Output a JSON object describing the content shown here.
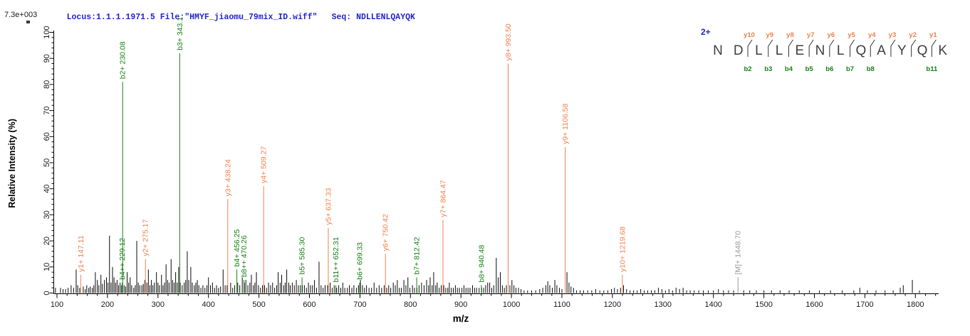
{
  "header": {
    "scale_label": "7.3e+003",
    "locus_file": "Locus:1.1.1.1971.5 File:\"HMYF_jiaomu_79mix_ID.wiff\"",
    "seq_label": "Seq: NDLLENLQAYQK"
  },
  "colors": {
    "y_ion": "#f0814e",
    "b_ion": "#178017",
    "precursor": "#999999",
    "noise": "#0a0a0a",
    "header": "#2525c8",
    "axis": "#000000",
    "tick_label": "#1a1a1a",
    "residue": "#3f3f3f",
    "fragment_mark": "#333333"
  },
  "sequence_panel": {
    "charge_label": "2+",
    "residues": [
      "N",
      "D",
      "L",
      "L",
      "E",
      "N",
      "L",
      "Q",
      "A",
      "Y",
      "Q",
      "K"
    ],
    "y_ion_labels": [
      {
        "label": "y10",
        "gap": 2
      },
      {
        "label": "y9",
        "gap": 3
      },
      {
        "label": "y8",
        "gap": 4
      },
      {
        "label": "y7",
        "gap": 5
      },
      {
        "label": "y6",
        "gap": 6
      },
      {
        "label": "y5",
        "gap": 7
      },
      {
        "label": "y4",
        "gap": 8
      },
      {
        "label": "y3",
        "gap": 9
      },
      {
        "label": "y2",
        "gap": 10
      },
      {
        "label": "y1",
        "gap": 11
      }
    ],
    "b_ion_labels": [
      {
        "label": "b2",
        "gap": 2
      },
      {
        "label": "b3",
        "gap": 3
      },
      {
        "label": "b4",
        "gap": 4
      },
      {
        "label": "b5",
        "gap": 5
      },
      {
        "label": "b6",
        "gap": 6
      },
      {
        "label": "b7",
        "gap": 7
      },
      {
        "label": "b8",
        "gap": 8
      },
      {
        "label": "b11",
        "gap": 11
      }
    ]
  },
  "chart_data": {
    "type": "bar",
    "subtype": "mass-spectrum-stick-plot",
    "title": "",
    "xlabel": "m/z",
    "ylabel": "Relative Intensity (%)",
    "xlim": [
      92,
      1846
    ],
    "ylim": [
      0,
      100
    ],
    "x_major_ticks": [
      100,
      200,
      300,
      400,
      500,
      600,
      700,
      800,
      900,
      1000,
      1100,
      1200,
      1300,
      1400,
      1500,
      1600,
      1700,
      1800
    ],
    "y_major_ticks": [
      0,
      10,
      20,
      30,
      40,
      50,
      60,
      70,
      80,
      90,
      100
    ],
    "x_minor_step": 20,
    "y_minor_step": 2,
    "grid": false,
    "base_peak_intensity": "7.3e+003",
    "fragments": [
      {
        "ion": "y1+",
        "mz": "147.11",
        "intensity": 7,
        "series": "y"
      },
      {
        "ion": "b4++",
        "mz": "229.12",
        "intensity": 4,
        "series": "b"
      },
      {
        "ion": "b2+",
        "mz": "230.08",
        "intensity": 81,
        "series": "b"
      },
      {
        "ion": "y2+",
        "mz": "275.17",
        "intensity": 13,
        "series": "y"
      },
      {
        "ion": "b3+",
        "mz": "343.1",
        "intensity": 92,
        "series": "b"
      },
      {
        "ion": "y3+",
        "mz": "438.24",
        "intensity": 36,
        "series": "y"
      },
      {
        "ion": "b4+",
        "mz": "456.25",
        "intensity": 9,
        "series": "b"
      },
      {
        "ion": "b8++",
        "mz": "470.26",
        "intensity": 5,
        "series": "b"
      },
      {
        "ion": "y4+",
        "mz": "509.27",
        "intensity": 41,
        "series": "y"
      },
      {
        "ion": "b5+",
        "mz": "585.30",
        "intensity": 6,
        "series": "b"
      },
      {
        "ion": "y5+",
        "mz": "637.33",
        "intensity": 25,
        "series": "y"
      },
      {
        "ion": "b11++",
        "mz": "652.31",
        "intensity": 3,
        "series": "b"
      },
      {
        "ion": "b6+",
        "mz": "699.33",
        "intensity": 4,
        "series": "b"
      },
      {
        "ion": "y6+",
        "mz": "750.42",
        "intensity": 15,
        "series": "y"
      },
      {
        "ion": "b7+",
        "mz": "812.42",
        "intensity": 6,
        "series": "b"
      },
      {
        "ion": "y7+",
        "mz": "864.47",
        "intensity": 28,
        "series": "y"
      },
      {
        "ion": "b8+",
        "mz": "940.48",
        "intensity": 3,
        "series": "b"
      },
      {
        "ion": "y8+",
        "mz": "993.50",
        "intensity": 88,
        "series": "y"
      },
      {
        "ion": "y9+",
        "mz": "1106.58",
        "intensity": 56,
        "series": "y"
      },
      {
        "ion": "y10+",
        "mz": "1219.68",
        "intensity": 7,
        "series": "y"
      },
      {
        "ion": "[M]+",
        "mz": "1448.70",
        "intensity": 6,
        "series": "precursor"
      }
    ],
    "noise_peaks": [
      [
        97,
        2
      ],
      [
        107,
        2
      ],
      [
        112,
        1.5
      ],
      [
        117,
        1.5
      ],
      [
        122,
        2
      ],
      [
        128,
        3
      ],
      [
        133,
        2
      ],
      [
        138,
        9
      ],
      [
        141,
        3
      ],
      [
        145,
        2
      ],
      [
        152,
        2.5
      ],
      [
        156,
        1.5
      ],
      [
        159,
        3
      ],
      [
        163,
        2
      ],
      [
        166,
        2.5
      ],
      [
        170,
        2
      ],
      [
        173,
        3
      ],
      [
        176,
        8
      ],
      [
        180,
        5
      ],
      [
        183,
        3
      ],
      [
        187,
        7
      ],
      [
        190,
        3.5
      ],
      [
        194,
        5
      ],
      [
        198,
        6
      ],
      [
        201,
        4
      ],
      [
        204,
        22
      ],
      [
        207,
        4
      ],
      [
        210,
        10
      ],
      [
        213,
        6
      ],
      [
        216,
        4
      ],
      [
        219,
        5
      ],
      [
        222,
        3
      ],
      [
        225,
        4
      ],
      [
        228,
        3
      ],
      [
        233,
        3
      ],
      [
        236,
        2.5
      ],
      [
        239,
        8
      ],
      [
        242,
        4
      ],
      [
        245,
        6
      ],
      [
        248,
        3
      ],
      [
        252,
        2
      ],
      [
        255,
        3
      ],
      [
        258,
        20
      ],
      [
        261,
        4
      ],
      [
        264,
        3
      ],
      [
        268,
        3
      ],
      [
        271,
        3.5
      ],
      [
        274,
        5
      ],
      [
        278,
        4
      ],
      [
        281,
        9
      ],
      [
        284,
        3
      ],
      [
        287,
        5
      ],
      [
        290,
        3
      ],
      [
        293,
        4
      ],
      [
        297,
        8
      ],
      [
        300,
        4
      ],
      [
        303,
        3
      ],
      [
        307,
        7
      ],
      [
        310,
        3
      ],
      [
        313,
        4
      ],
      [
        316,
        11
      ],
      [
        319,
        5
      ],
      [
        322,
        4
      ],
      [
        326,
        13
      ],
      [
        329,
        5
      ],
      [
        332,
        4
      ],
      [
        335,
        8
      ],
      [
        338,
        4
      ],
      [
        341,
        10
      ],
      [
        344,
        4
      ],
      [
        348,
        3
      ],
      [
        352,
        4
      ],
      [
        355,
        5
      ],
      [
        358,
        16
      ],
      [
        361,
        5
      ],
      [
        365,
        10
      ],
      [
        368,
        4
      ],
      [
        372,
        3
      ],
      [
        375,
        4
      ],
      [
        378,
        5
      ],
      [
        381,
        3
      ],
      [
        385,
        2
      ],
      [
        389,
        3
      ],
      [
        393,
        2
      ],
      [
        397,
        3
      ],
      [
        400,
        6
      ],
      [
        404,
        3
      ],
      [
        408,
        4
      ],
      [
        412,
        2
      ],
      [
        416,
        3
      ],
      [
        420,
        2
      ],
      [
        424,
        2.5
      ],
      [
        429,
        9
      ],
      [
        433,
        3
      ],
      [
        437,
        3
      ],
      [
        444,
        4
      ],
      [
        448,
        2
      ],
      [
        452,
        3
      ],
      [
        458,
        4
      ],
      [
        462,
        3
      ],
      [
        467,
        6
      ],
      [
        471,
        4
      ],
      [
        474,
        5
      ],
      [
        478,
        3
      ],
      [
        482,
        4
      ],
      [
        485,
        7
      ],
      [
        489,
        3
      ],
      [
        492,
        4
      ],
      [
        495,
        8
      ],
      [
        499,
        3
      ],
      [
        503,
        2
      ],
      [
        507,
        3
      ],
      [
        511,
        3
      ],
      [
        515,
        2
      ],
      [
        519,
        4
      ],
      [
        523,
        3
      ],
      [
        527,
        4
      ],
      [
        531,
        2
      ],
      [
        535,
        3
      ],
      [
        538,
        8
      ],
      [
        542,
        4
      ],
      [
        545,
        7
      ],
      [
        549,
        3
      ],
      [
        552,
        4
      ],
      [
        555,
        9
      ],
      [
        559,
        4
      ],
      [
        562,
        3
      ],
      [
        566,
        4
      ],
      [
        570,
        3
      ],
      [
        574,
        5
      ],
      [
        578,
        3
      ],
      [
        582,
        3
      ],
      [
        586,
        3
      ],
      [
        590,
        3
      ],
      [
        594,
        2
      ],
      [
        598,
        4
      ],
      [
        602,
        3
      ],
      [
        606,
        3
      ],
      [
        610,
        5
      ],
      [
        614,
        2
      ],
      [
        619,
        12
      ],
      [
        623,
        3
      ],
      [
        627,
        2
      ],
      [
        631,
        3
      ],
      [
        636,
        3
      ],
      [
        641,
        4
      ],
      [
        645,
        2
      ],
      [
        649,
        3
      ],
      [
        654,
        2
      ],
      [
        658,
        3
      ],
      [
        662,
        2
      ],
      [
        666,
        4
      ],
      [
        670,
        2
      ],
      [
        675,
        2
      ],
      [
        679,
        3
      ],
      [
        684,
        2
      ],
      [
        688,
        3
      ],
      [
        693,
        2
      ],
      [
        697,
        3
      ],
      [
        701,
        5
      ],
      [
        705,
        3
      ],
      [
        709,
        2
      ],
      [
        713,
        3
      ],
      [
        718,
        2
      ],
      [
        723,
        2
      ],
      [
        728,
        4
      ],
      [
        733,
        2
      ],
      [
        738,
        3
      ],
      [
        743,
        2
      ],
      [
        748,
        3
      ],
      [
        753,
        2
      ],
      [
        757,
        3
      ],
      [
        761,
        2
      ],
      [
        766,
        4
      ],
      [
        770,
        3
      ],
      [
        774,
        5
      ],
      [
        778,
        2
      ],
      [
        782,
        2
      ],
      [
        787,
        5
      ],
      [
        791,
        3
      ],
      [
        795,
        6
      ],
      [
        799,
        2
      ],
      [
        804,
        3
      ],
      [
        808,
        2
      ],
      [
        813,
        2
      ],
      [
        817,
        3
      ],
      [
        822,
        4
      ],
      [
        827,
        3
      ],
      [
        832,
        5
      ],
      [
        836,
        3
      ],
      [
        839,
        6
      ],
      [
        843,
        3
      ],
      [
        846,
        8
      ],
      [
        850,
        3
      ],
      [
        853,
        4
      ],
      [
        857,
        2
      ],
      [
        861,
        3
      ],
      [
        866,
        3
      ],
      [
        870,
        2
      ],
      [
        874,
        2
      ],
      [
        877,
        4
      ],
      [
        881,
        2
      ],
      [
        885,
        2
      ],
      [
        889,
        3
      ],
      [
        893,
        2
      ],
      [
        897,
        2
      ],
      [
        902,
        2
      ],
      [
        906,
        3
      ],
      [
        910,
        2
      ],
      [
        914,
        2
      ],
      [
        918,
        2
      ],
      [
        923,
        3
      ],
      [
        927,
        2
      ],
      [
        931,
        2
      ],
      [
        936,
        2
      ],
      [
        941,
        2
      ],
      [
        945,
        2
      ],
      [
        949,
        3
      ],
      [
        953,
        4
      ],
      [
        957,
        4
      ],
      [
        961,
        2
      ],
      [
        965,
        3
      ],
      [
        970,
        13.5
      ],
      [
        974,
        6
      ],
      [
        978,
        8
      ],
      [
        982,
        3
      ],
      [
        986,
        2
      ],
      [
        990,
        3
      ],
      [
        997,
        3
      ],
      [
        1001,
        5
      ],
      [
        1005,
        3
      ],
      [
        1009,
        2
      ],
      [
        1014,
        2
      ],
      [
        1019,
        1.5
      ],
      [
        1025,
        1
      ],
      [
        1032,
        1
      ],
      [
        1040,
        1
      ],
      [
        1048,
        1
      ],
      [
        1056,
        1.5
      ],
      [
        1062,
        2
      ],
      [
        1068,
        3
      ],
      [
        1072,
        4.5
      ],
      [
        1076,
        3
      ],
      [
        1081,
        2
      ],
      [
        1086,
        5
      ],
      [
        1090,
        3
      ],
      [
        1095,
        2
      ],
      [
        1100,
        1.5
      ],
      [
        1110,
        8
      ],
      [
        1114,
        4
      ],
      [
        1118,
        2.5
      ],
      [
        1123,
        2
      ],
      [
        1129,
        1
      ],
      [
        1136,
        1
      ],
      [
        1143,
        1
      ],
      [
        1151,
        1
      ],
      [
        1159,
        1
      ],
      [
        1167,
        1.5
      ],
      [
        1175,
        1
      ],
      [
        1183,
        1
      ],
      [
        1191,
        1
      ],
      [
        1198,
        1.5
      ],
      [
        1204,
        2
      ],
      [
        1210,
        1.5
      ],
      [
        1216,
        2
      ],
      [
        1222,
        3
      ],
      [
        1228,
        1.5
      ],
      [
        1235,
        1
      ],
      [
        1242,
        1
      ],
      [
        1249,
        1
      ],
      [
        1256,
        1.5
      ],
      [
        1263,
        1
      ],
      [
        1270,
        1
      ],
      [
        1277,
        1
      ],
      [
        1284,
        1
      ],
      [
        1291,
        2
      ],
      [
        1298,
        1.5
      ],
      [
        1305,
        1
      ],
      [
        1312,
        1.5
      ],
      [
        1319,
        1
      ],
      [
        1326,
        2
      ],
      [
        1333,
        1.5
      ],
      [
        1340,
        2
      ],
      [
        1347,
        1
      ],
      [
        1354,
        1
      ],
      [
        1362,
        1
      ],
      [
        1371,
        1
      ],
      [
        1380,
        1
      ],
      [
        1390,
        1
      ],
      [
        1400,
        1
      ],
      [
        1410,
        1.5
      ],
      [
        1420,
        1
      ],
      [
        1430,
        1
      ],
      [
        1440,
        1
      ],
      [
        1460,
        1
      ],
      [
        1472,
        1
      ],
      [
        1485,
        1
      ],
      [
        1500,
        1
      ],
      [
        1515,
        1
      ],
      [
        1532,
        1
      ],
      [
        1550,
        1
      ],
      [
        1570,
        1
      ],
      [
        1590,
        1
      ],
      [
        1610,
        1
      ],
      [
        1632,
        1
      ],
      [
        1655,
        1
      ],
      [
        1678,
        1
      ],
      [
        1690,
        2
      ],
      [
        1705,
        1
      ],
      [
        1722,
        1
      ],
      [
        1740,
        1
      ],
      [
        1756,
        1
      ],
      [
        1770,
        2
      ],
      [
        1776,
        3
      ],
      [
        1794,
        5
      ],
      [
        1808,
        1
      ]
    ]
  }
}
